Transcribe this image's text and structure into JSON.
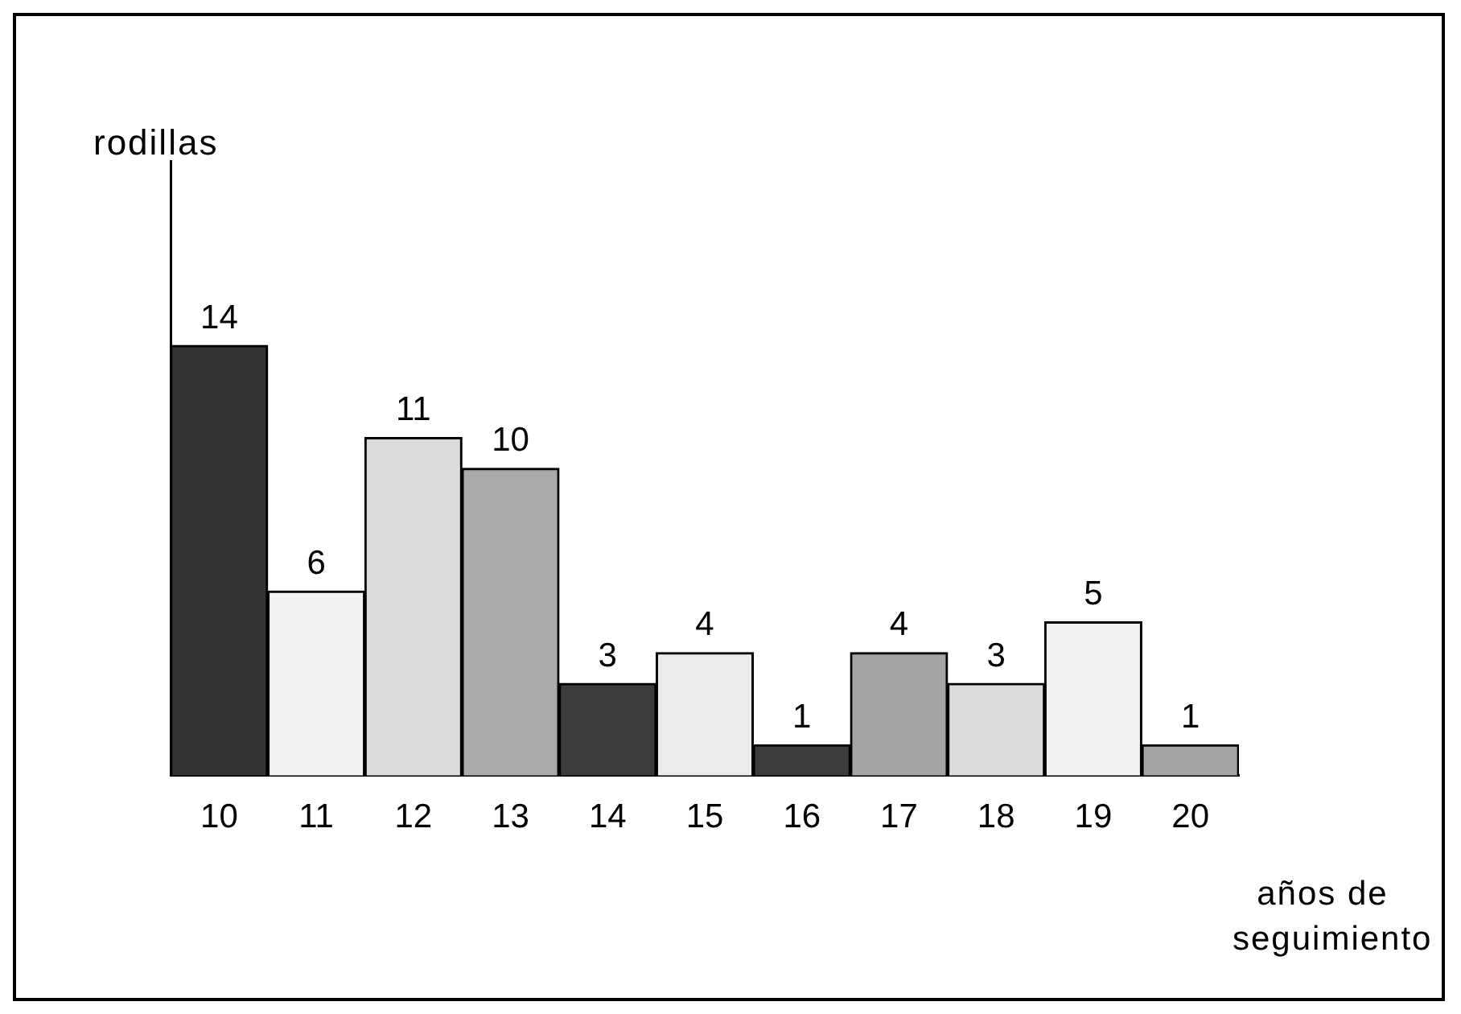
{
  "chart_data": {
    "type": "bar",
    "ylabel": "rodillas",
    "xlabel": "años de seguimiento",
    "categories": [
      "10",
      "11",
      "12",
      "13",
      "14",
      "15",
      "16",
      "17",
      "18",
      "19",
      "20"
    ],
    "values": [
      14,
      6,
      11,
      10,
      3,
      4,
      1,
      4,
      3,
      5,
      1
    ],
    "colors": [
      "#333333",
      "#f2f2f2",
      "#dcdcdc",
      "#aaaaaa",
      "#3c3c3c",
      "#ececec",
      "#3c3c3c",
      "#a4a4a4",
      "#dcdcdc",
      "#f2f2f2",
      "#a4a4a4"
    ],
    "ylim": [
      0,
      20
    ],
    "data_labels": true,
    "grid": false,
    "legend": false
  }
}
